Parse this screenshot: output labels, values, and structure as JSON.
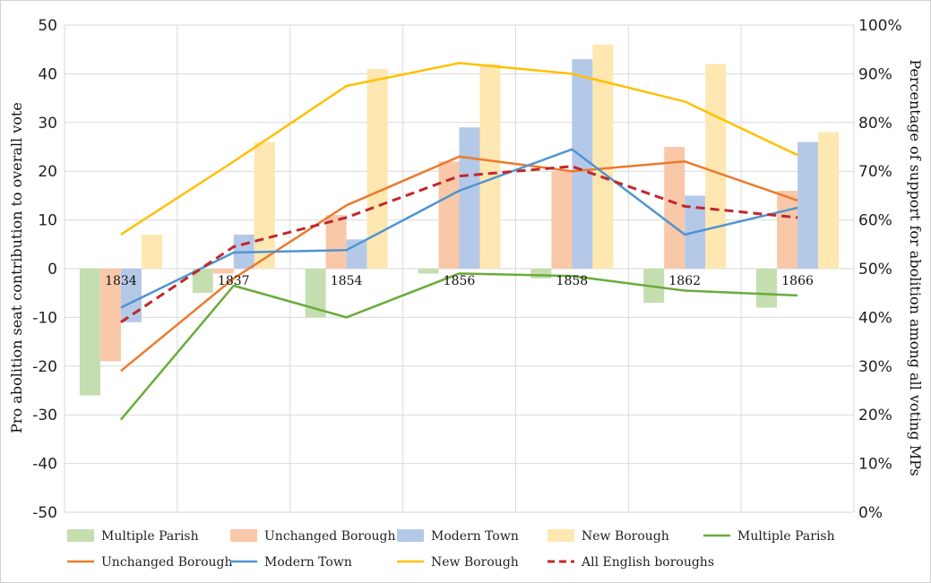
{
  "chart_data": {
    "type": "bar+line",
    "categories": [
      "1834",
      "1837",
      "1854",
      "1856",
      "1858",
      "1862",
      "1866"
    ],
    "left_axis": {
      "label": "Pro abolition seat contribution to overall vote",
      "range": [
        -50,
        50
      ],
      "ticks": [
        "50",
        "40",
        "30",
        "20",
        "10",
        "0",
        "-10",
        "-20",
        "-30",
        "-40",
        "-50"
      ]
    },
    "right_axis": {
      "label": "Percentage of support for abolition among all voting MPs",
      "range": [
        0,
        100
      ],
      "ticks": [
        "100%",
        "90%",
        "80%",
        "70%",
        "60%",
        "50%",
        "40%",
        "30%",
        "20%",
        "10%",
        "0%"
      ]
    },
    "grid": true,
    "legend_position": "bottom",
    "bar_series": [
      {
        "name": "Multiple Parish",
        "color": "#c5deb0",
        "values": [
          -26,
          -5,
          -10,
          -1,
          -2,
          -7,
          -8
        ]
      },
      {
        "name": "Unchanged Borough",
        "color": "#f9c8a9",
        "values": [
          -19,
          -1,
          11,
          22,
          20,
          25,
          16
        ]
      },
      {
        "name": "Modern Town",
        "color": "#b4c9e8",
        "values": [
          -11,
          7,
          6,
          29,
          43,
          15,
          26
        ]
      },
      {
        "name": "New Borough",
        "color": "#fee7b0",
        "values": [
          7,
          26,
          41,
          42,
          46,
          42,
          28
        ]
      }
    ],
    "line_series": [
      {
        "name": "Multiple Parish",
        "color": "#6aab3c",
        "dash": false,
        "values": [
          19,
          46.5,
          40,
          49,
          48.5,
          45.5,
          44.5
        ]
      },
      {
        "name": "Unchanged Borough",
        "color": "#ec7a2c",
        "dash": false,
        "values": [
          29,
          48,
          63,
          73,
          70,
          72,
          64
        ]
      },
      {
        "name": "Modern Town",
        "color": "#4f94d0",
        "dash": false,
        "values": [
          42,
          53.3,
          53.8,
          66,
          74.5,
          57,
          62.5
        ]
      },
      {
        "name": "New Borough",
        "color": "#ffc000",
        "dash": false,
        "values": [
          57,
          72,
          87.5,
          92.2,
          90,
          84.3,
          73.3
        ]
      },
      {
        "name": "All English boroughs",
        "color": "#c0272d",
        "dash": true,
        "values": [
          39,
          54.5,
          60.5,
          69,
          71,
          62.8,
          60.5
        ]
      }
    ]
  }
}
